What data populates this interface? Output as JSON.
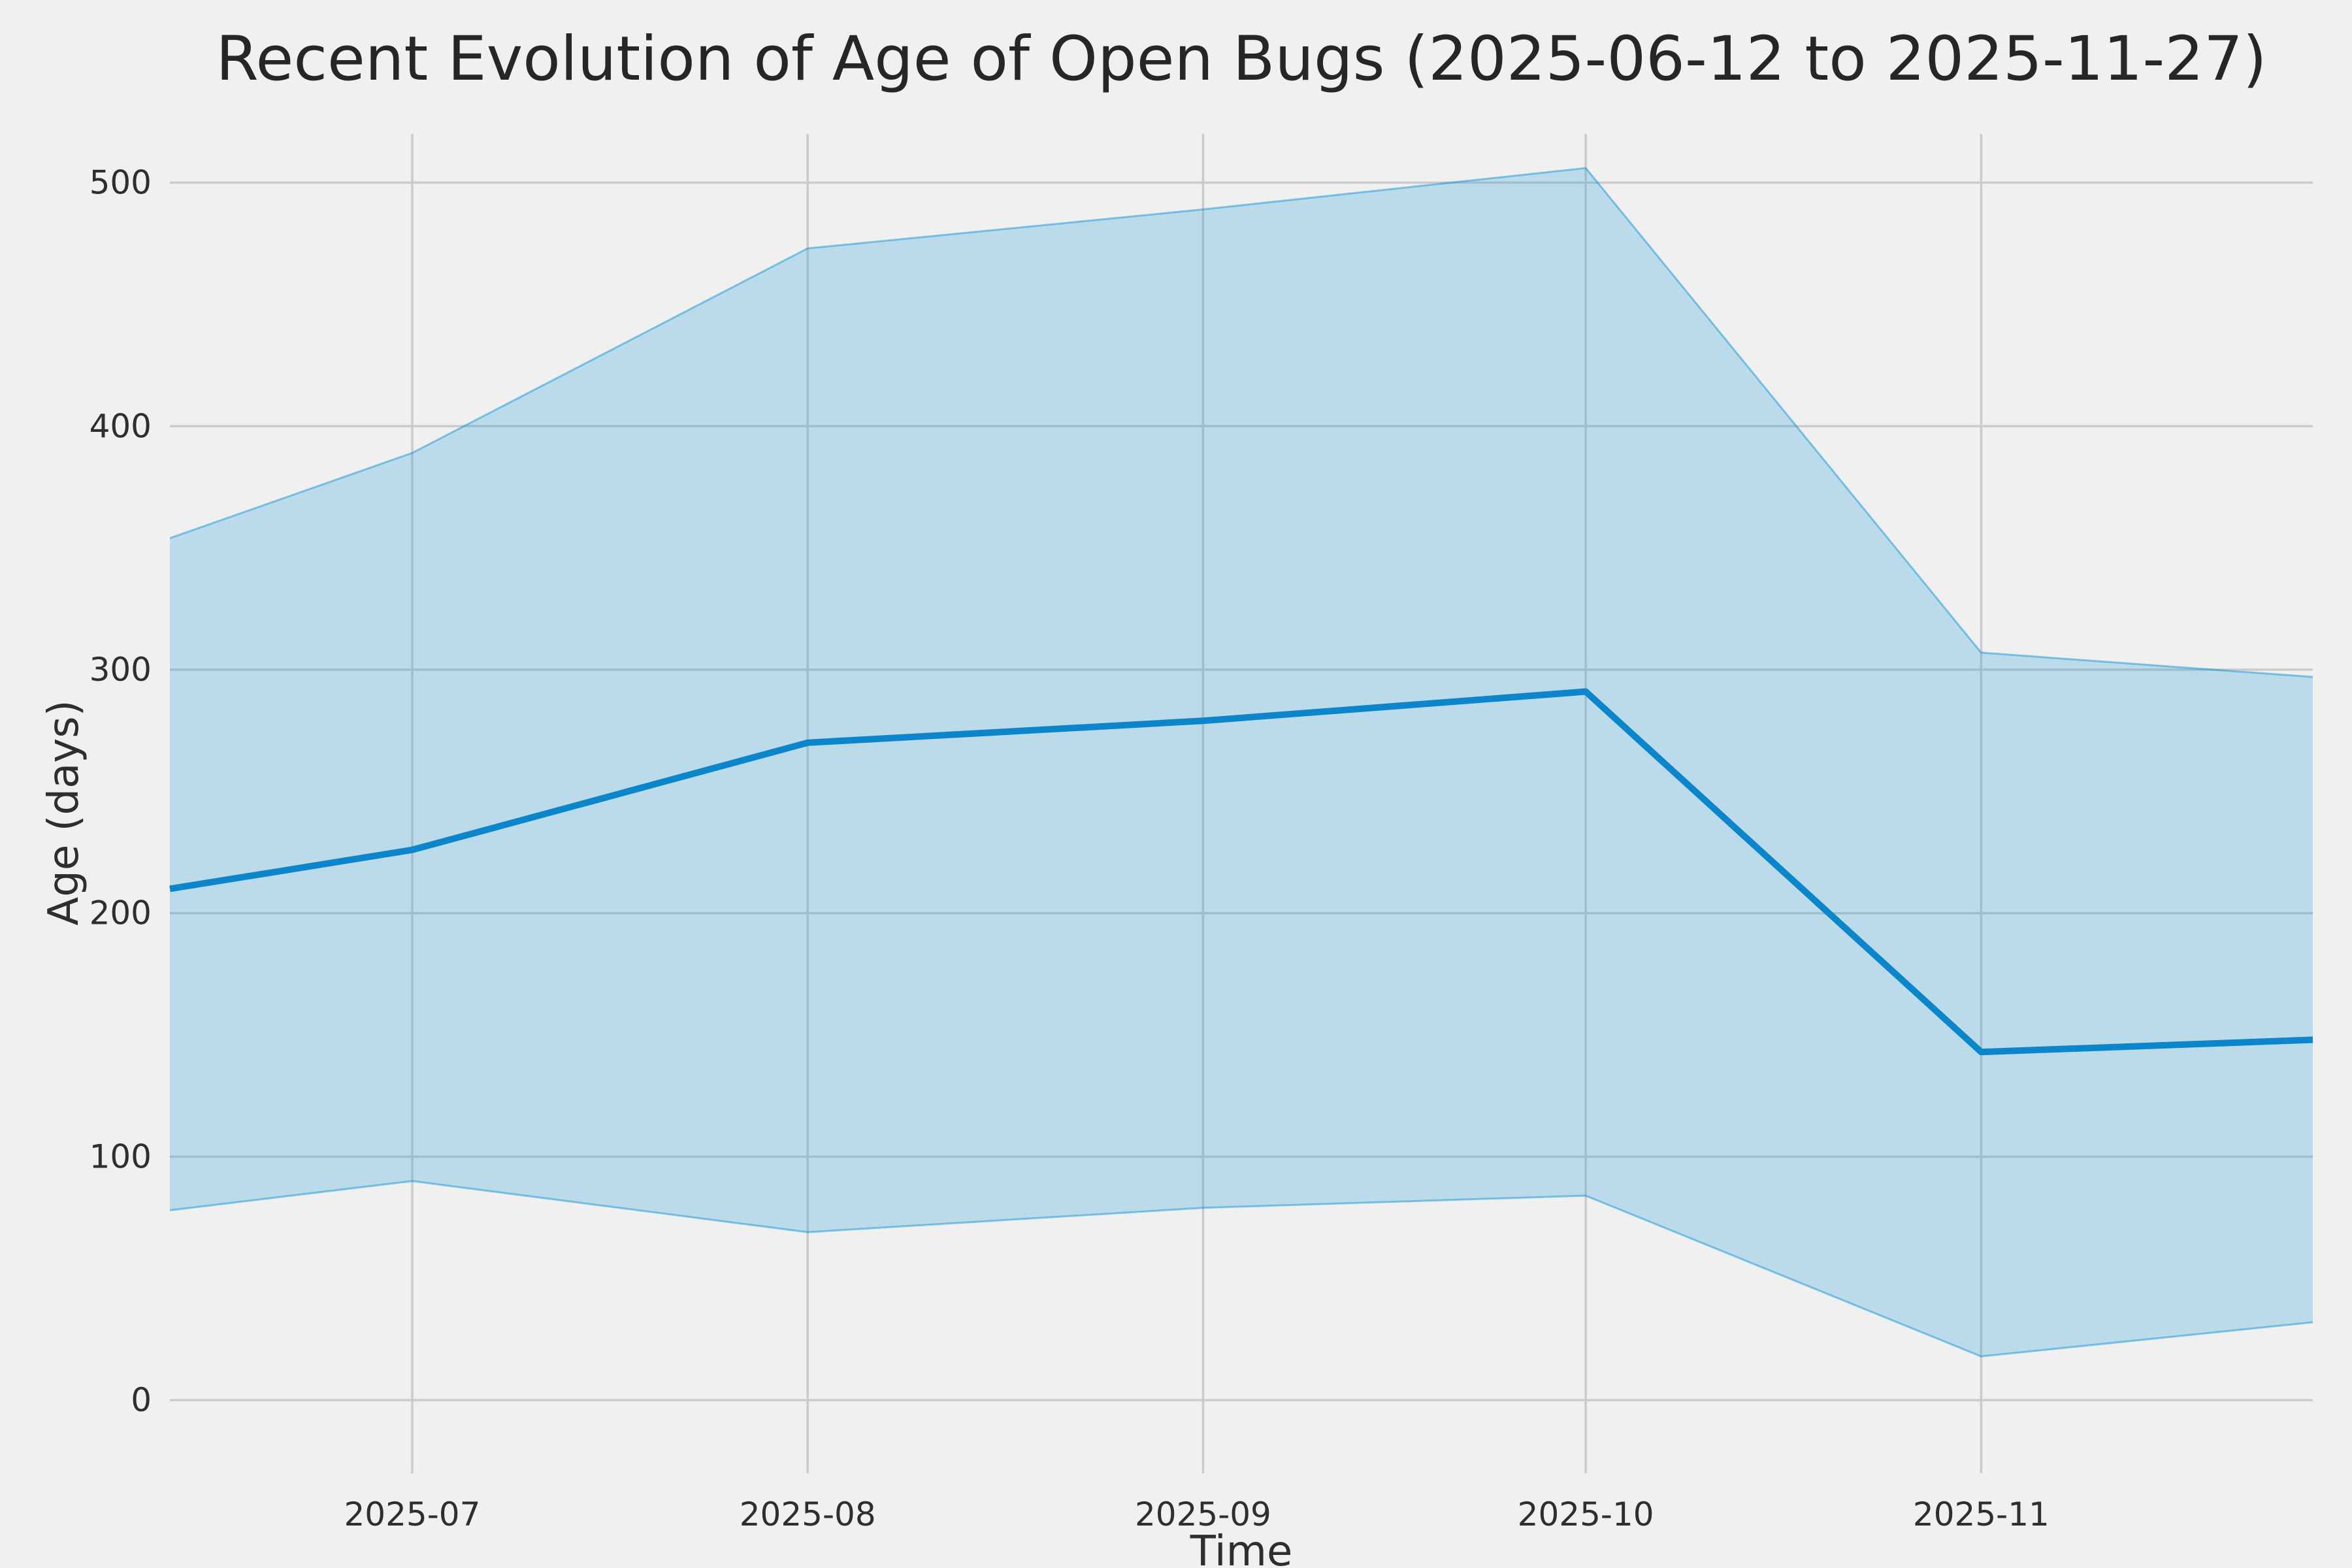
{
  "chart_data": {
    "type": "line",
    "title": "Recent Evolution of Age of Open Bugs (2025-06-12 to 2025-11-27)",
    "xlabel": "Time",
    "ylabel": "Age (days)",
    "date_range": {
      "start": "2025-06-12",
      "end": "2025-11-27"
    },
    "x": [
      "2025-06-12",
      "2025-07-01",
      "2025-08-01",
      "2025-09-01",
      "2025-10-01",
      "2025-11-01",
      "2025-11-27"
    ],
    "x_days": [
      0,
      19,
      50,
      81,
      111,
      142,
      168
    ],
    "series": [
      {
        "name": "mean_age_days",
        "values": [
          210,
          226,
          270,
          279,
          291,
          143,
          148
        ]
      },
      {
        "name": "band_lower_days",
        "values": [
          78,
          90,
          69,
          79,
          84,
          18,
          32
        ]
      },
      {
        "name": "band_upper_days",
        "values": [
          354,
          389,
          473,
          489,
          506,
          307,
          297
        ]
      }
    ],
    "x_ticks": [
      {
        "label": "2025-07",
        "day": 19
      },
      {
        "label": "2025-08",
        "day": 50
      },
      {
        "label": "2025-09",
        "day": 81
      },
      {
        "label": "2025-10",
        "day": 111
      },
      {
        "label": "2025-11",
        "day": 142
      }
    ],
    "y_ticks": [
      0,
      100,
      200,
      300,
      400,
      500
    ],
    "ylim": [
      -30,
      520
    ],
    "xlim_days": [
      0,
      168
    ],
    "grid": true,
    "legend": false,
    "colors": {
      "background": "#f0f0f0",
      "grid": "#cbcbcb",
      "mean_line": "#0b86ca",
      "band": "#008fd5",
      "band_opacity": 0.22,
      "band_edge_opacity": 0.45,
      "text": "#2e2e2e",
      "title_text": "#262626"
    }
  }
}
